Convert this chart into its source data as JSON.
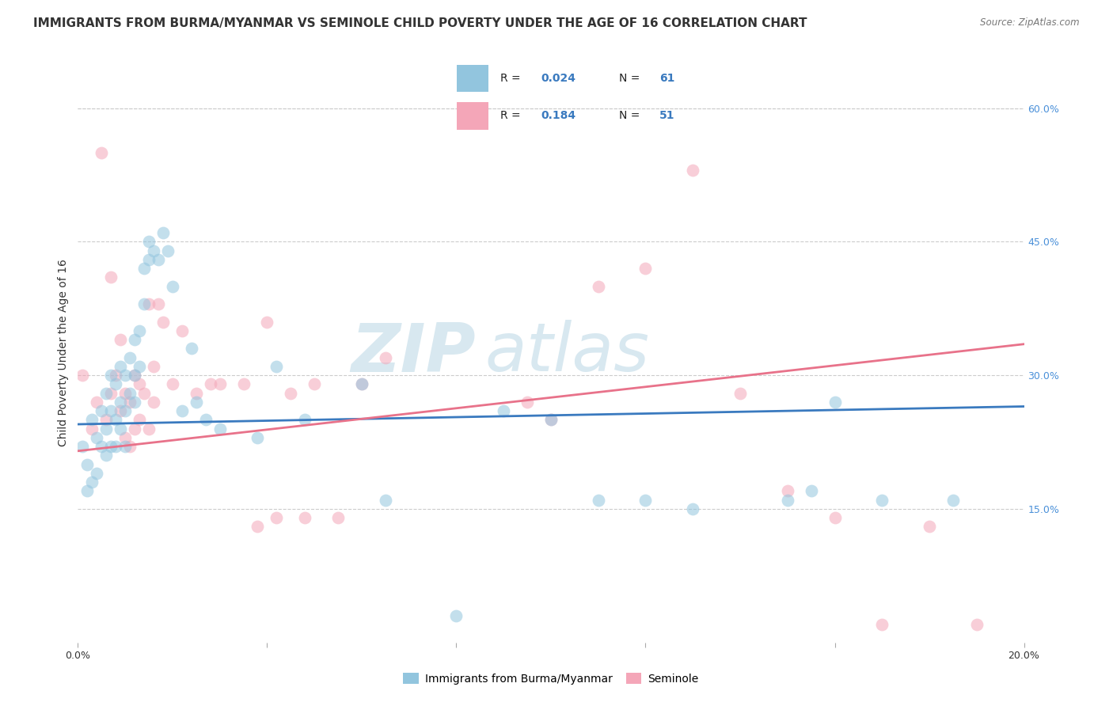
{
  "title": "IMMIGRANTS FROM BURMA/MYANMAR VS SEMINOLE CHILD POVERTY UNDER THE AGE OF 16 CORRELATION CHART",
  "source": "Source: ZipAtlas.com",
  "ylabel": "Child Poverty Under the Age of 16",
  "xlim": [
    0.0,
    0.2
  ],
  "ylim": [
    0.0,
    0.65
  ],
  "x_ticks": [
    0.0,
    0.04,
    0.08,
    0.12,
    0.16,
    0.2
  ],
  "y_ticks_right": [
    0.15,
    0.3,
    0.45,
    0.6
  ],
  "y_tick_labels_right": [
    "15.0%",
    "30.0%",
    "45.0%",
    "60.0%"
  ],
  "color_blue": "#92c5de",
  "color_pink": "#f4a6b8",
  "line_blue": "#3a7abf",
  "line_pink": "#e8728a",
  "watermark_zip": "ZIP",
  "watermark_atlas": "atlas",
  "legend_label1": "Immigrants from Burma/Myanmar",
  "legend_label2": "Seminole",
  "blue_scatter_x": [
    0.001,
    0.002,
    0.002,
    0.003,
    0.003,
    0.004,
    0.004,
    0.005,
    0.005,
    0.006,
    0.006,
    0.006,
    0.007,
    0.007,
    0.007,
    0.008,
    0.008,
    0.008,
    0.009,
    0.009,
    0.009,
    0.01,
    0.01,
    0.01,
    0.011,
    0.011,
    0.012,
    0.012,
    0.012,
    0.013,
    0.013,
    0.014,
    0.014,
    0.015,
    0.015,
    0.016,
    0.017,
    0.018,
    0.019,
    0.02,
    0.022,
    0.024,
    0.025,
    0.027,
    0.03,
    0.038,
    0.042,
    0.048,
    0.06,
    0.065,
    0.08,
    0.09,
    0.1,
    0.11,
    0.12,
    0.13,
    0.15,
    0.155,
    0.16,
    0.17,
    0.185
  ],
  "blue_scatter_y": [
    0.22,
    0.2,
    0.17,
    0.25,
    0.18,
    0.23,
    0.19,
    0.26,
    0.22,
    0.28,
    0.24,
    0.21,
    0.3,
    0.26,
    0.22,
    0.29,
    0.25,
    0.22,
    0.31,
    0.27,
    0.24,
    0.3,
    0.26,
    0.22,
    0.32,
    0.28,
    0.34,
    0.3,
    0.27,
    0.35,
    0.31,
    0.42,
    0.38,
    0.45,
    0.43,
    0.44,
    0.43,
    0.46,
    0.44,
    0.4,
    0.26,
    0.33,
    0.27,
    0.25,
    0.24,
    0.23,
    0.31,
    0.25,
    0.29,
    0.16,
    0.03,
    0.26,
    0.25,
    0.16,
    0.16,
    0.15,
    0.16,
    0.17,
    0.27,
    0.16,
    0.16
  ],
  "pink_scatter_x": [
    0.001,
    0.003,
    0.004,
    0.005,
    0.006,
    0.007,
    0.007,
    0.008,
    0.009,
    0.009,
    0.01,
    0.01,
    0.011,
    0.011,
    0.012,
    0.012,
    0.013,
    0.013,
    0.014,
    0.015,
    0.015,
    0.016,
    0.016,
    0.017,
    0.018,
    0.02,
    0.022,
    0.025,
    0.028,
    0.03,
    0.035,
    0.038,
    0.04,
    0.042,
    0.045,
    0.048,
    0.05,
    0.055,
    0.06,
    0.065,
    0.095,
    0.1,
    0.11,
    0.12,
    0.13,
    0.14,
    0.15,
    0.16,
    0.17,
    0.18,
    0.19
  ],
  "pink_scatter_y": [
    0.3,
    0.24,
    0.27,
    0.55,
    0.25,
    0.28,
    0.41,
    0.3,
    0.34,
    0.26,
    0.28,
    0.23,
    0.27,
    0.22,
    0.3,
    0.24,
    0.29,
    0.25,
    0.28,
    0.24,
    0.38,
    0.31,
    0.27,
    0.38,
    0.36,
    0.29,
    0.35,
    0.28,
    0.29,
    0.29,
    0.29,
    0.13,
    0.36,
    0.14,
    0.28,
    0.14,
    0.29,
    0.14,
    0.29,
    0.32,
    0.27,
    0.25,
    0.4,
    0.42,
    0.53,
    0.28,
    0.17,
    0.14,
    0.02,
    0.13,
    0.02
  ],
  "blue_line_x": [
    0.0,
    0.2
  ],
  "blue_line_y": [
    0.245,
    0.265
  ],
  "pink_line_x": [
    0.0,
    0.2
  ],
  "pink_line_y": [
    0.215,
    0.335
  ],
  "background_color": "#ffffff",
  "grid_color": "#cccccc",
  "title_fontsize": 11,
  "label_fontsize": 10,
  "tick_fontsize": 9,
  "scatter_size": 130,
  "scatter_alpha": 0.55,
  "tick_color": "#4a90d9",
  "text_color": "#333333"
}
